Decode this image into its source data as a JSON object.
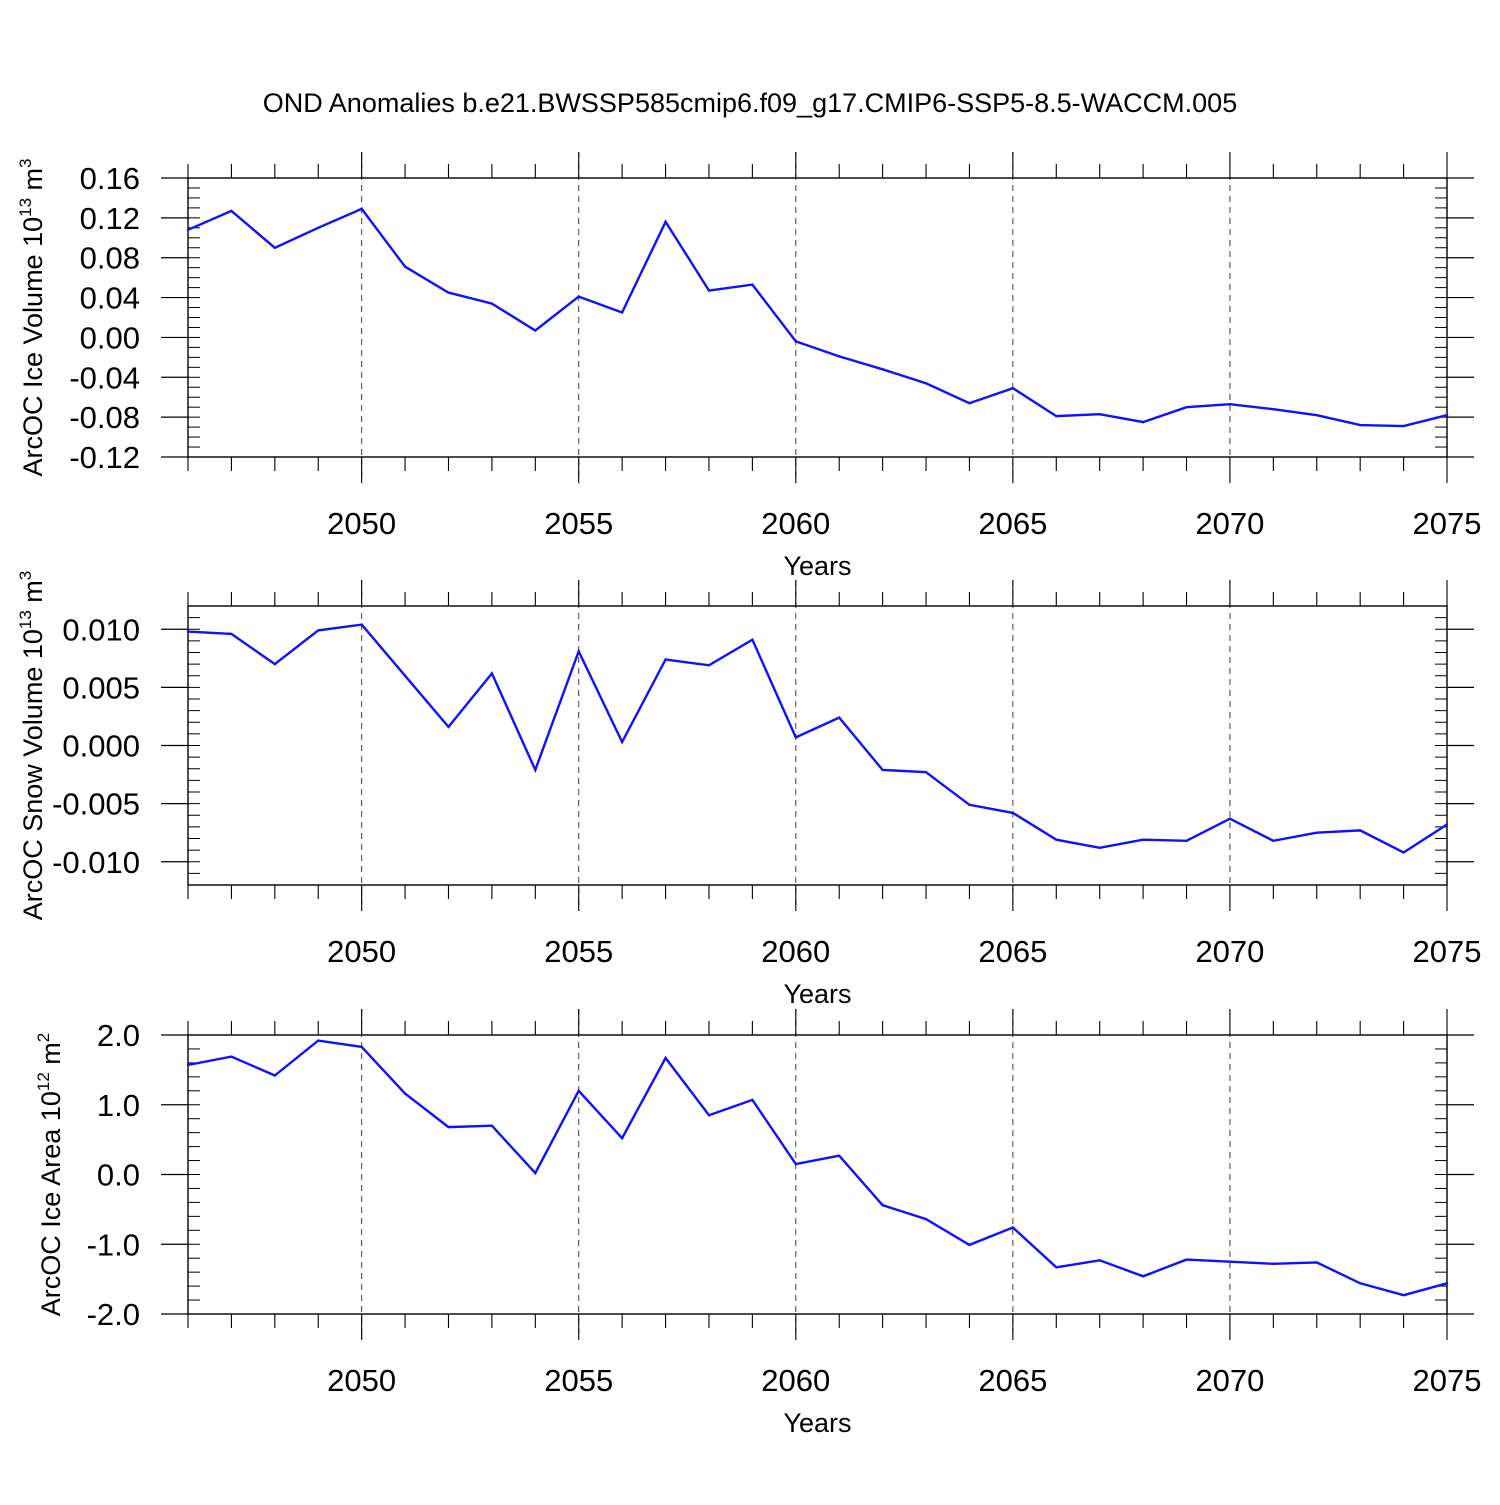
{
  "title": "OND Anomalies b.e21.BWSSP585cmip6.f09_g17.CMIP6-SSP5-8.5-WACCM.005",
  "colors": {
    "line": "#1010ff",
    "axis": "#000000",
    "grid": "#000000"
  },
  "chart_data": [
    {
      "type": "line",
      "ylabel_main": "ArcOC Ice Volume 10",
      "ylabel_exp": "13",
      "ylabel_unit": " m",
      "ylabel_unit_exp": "3",
      "xlabel": "Years",
      "xlim": [
        2046,
        2075
      ],
      "ylim": [
        -0.12,
        0.16
      ],
      "grid": true,
      "yticks": [
        -0.12,
        -0.08,
        -0.04,
        0.0,
        0.04,
        0.08,
        0.12,
        0.16
      ],
      "ytick_labels": [
        "-0.12",
        "-0.08",
        "-0.04",
        "0.00",
        "0.04",
        "0.08",
        "0.12",
        "0.16"
      ],
      "yminor_step": 0.01,
      "xticks": [
        2050,
        2055,
        2060,
        2065,
        2070,
        2075
      ],
      "xtick_labels": [
        "2050",
        "2055",
        "2060",
        "2065",
        "2070",
        "2075"
      ],
      "x": [
        2046,
        2047,
        2048,
        2049,
        2050,
        2051,
        2052,
        2053,
        2054,
        2055,
        2056,
        2057,
        2058,
        2059,
        2060,
        2061,
        2062,
        2063,
        2064,
        2065,
        2066,
        2067,
        2068,
        2069,
        2070,
        2071,
        2072,
        2073,
        2074,
        2075
      ],
      "series": [
        {
          "name": "ArcOC Ice Volume",
          "values": [
            0.108,
            0.127,
            0.09,
            0.11,
            0.129,
            0.071,
            0.045,
            0.034,
            0.007,
            0.041,
            0.025,
            0.116,
            0.047,
            0.053,
            -0.004,
            -0.019,
            -0.032,
            -0.046,
            -0.066,
            -0.051,
            -0.079,
            -0.077,
            -0.085,
            -0.07,
            -0.067,
            -0.072,
            -0.078,
            -0.088,
            -0.089,
            -0.078
          ]
        }
      ]
    },
    {
      "type": "line",
      "ylabel_main": "ArcOC Snow Volume 10",
      "ylabel_exp": "13",
      "ylabel_unit": " m",
      "ylabel_unit_exp": "3",
      "xlabel": "Years",
      "xlim": [
        2046,
        2075
      ],
      "ylim": [
        -0.012,
        0.012
      ],
      "grid": true,
      "yticks": [
        -0.01,
        -0.005,
        0.0,
        0.005,
        0.01
      ],
      "ytick_labels": [
        "-0.010",
        "-0.005",
        "0.000",
        "0.005",
        "0.010"
      ],
      "yminor_step": 0.001,
      "xticks": [
        2050,
        2055,
        2060,
        2065,
        2070,
        2075
      ],
      "xtick_labels": [
        "2050",
        "2055",
        "2060",
        "2065",
        "2070",
        "2075"
      ],
      "x": [
        2046,
        2047,
        2048,
        2049,
        2050,
        2051,
        2052,
        2053,
        2054,
        2055,
        2056,
        2057,
        2058,
        2059,
        2060,
        2061,
        2062,
        2063,
        2064,
        2065,
        2066,
        2067,
        2068,
        2069,
        2070,
        2071,
        2072,
        2073,
        2074,
        2075
      ],
      "series": [
        {
          "name": "ArcOC Snow Volume",
          "values": [
            0.0098,
            0.0096,
            0.007,
            0.0099,
            0.0104,
            0.006,
            0.0016,
            0.0062,
            -0.0021,
            0.0081,
            0.0003,
            0.0074,
            0.0069,
            0.0091,
            0.0007,
            0.0024,
            -0.0021,
            -0.0023,
            -0.0051,
            -0.0058,
            -0.0081,
            -0.0088,
            -0.0081,
            -0.0082,
            -0.0063,
            -0.0082,
            -0.0075,
            -0.0073,
            -0.0092,
            -0.0068
          ]
        }
      ]
    },
    {
      "type": "line",
      "ylabel_main": "ArcOC Ice Area 10",
      "ylabel_exp": "12",
      "ylabel_unit": " m",
      "ylabel_unit_exp": "2",
      "xlabel": "Years",
      "xlim": [
        2046,
        2075
      ],
      "ylim": [
        -2.0,
        2.0
      ],
      "grid": true,
      "yticks": [
        -2.0,
        -1.0,
        0.0,
        1.0,
        2.0
      ],
      "ytick_labels": [
        "-2.0",
        "-1.0",
        "0.0",
        "1.0",
        "2.0"
      ],
      "yminor_step": 0.2,
      "xticks": [
        2050,
        2055,
        2060,
        2065,
        2070,
        2075
      ],
      "xtick_labels": [
        "2050",
        "2055",
        "2060",
        "2065",
        "2070",
        "2075"
      ],
      "x": [
        2046,
        2047,
        2048,
        2049,
        2050,
        2051,
        2052,
        2053,
        2054,
        2055,
        2056,
        2057,
        2058,
        2059,
        2060,
        2061,
        2062,
        2063,
        2064,
        2065,
        2066,
        2067,
        2068,
        2069,
        2070,
        2071,
        2072,
        2073,
        2074,
        2075
      ],
      "series": [
        {
          "name": "ArcOC Ice Area",
          "values": [
            1.57,
            1.69,
            1.42,
            1.92,
            1.83,
            1.16,
            0.68,
            0.7,
            0.02,
            1.2,
            0.52,
            1.67,
            0.85,
            1.07,
            0.15,
            0.27,
            -0.44,
            -0.64,
            -1.01,
            -0.76,
            -1.33,
            -1.23,
            -1.46,
            -1.22,
            -1.25,
            -1.28,
            -1.26,
            -1.56,
            -1.73,
            -1.56
          ]
        }
      ]
    }
  ]
}
